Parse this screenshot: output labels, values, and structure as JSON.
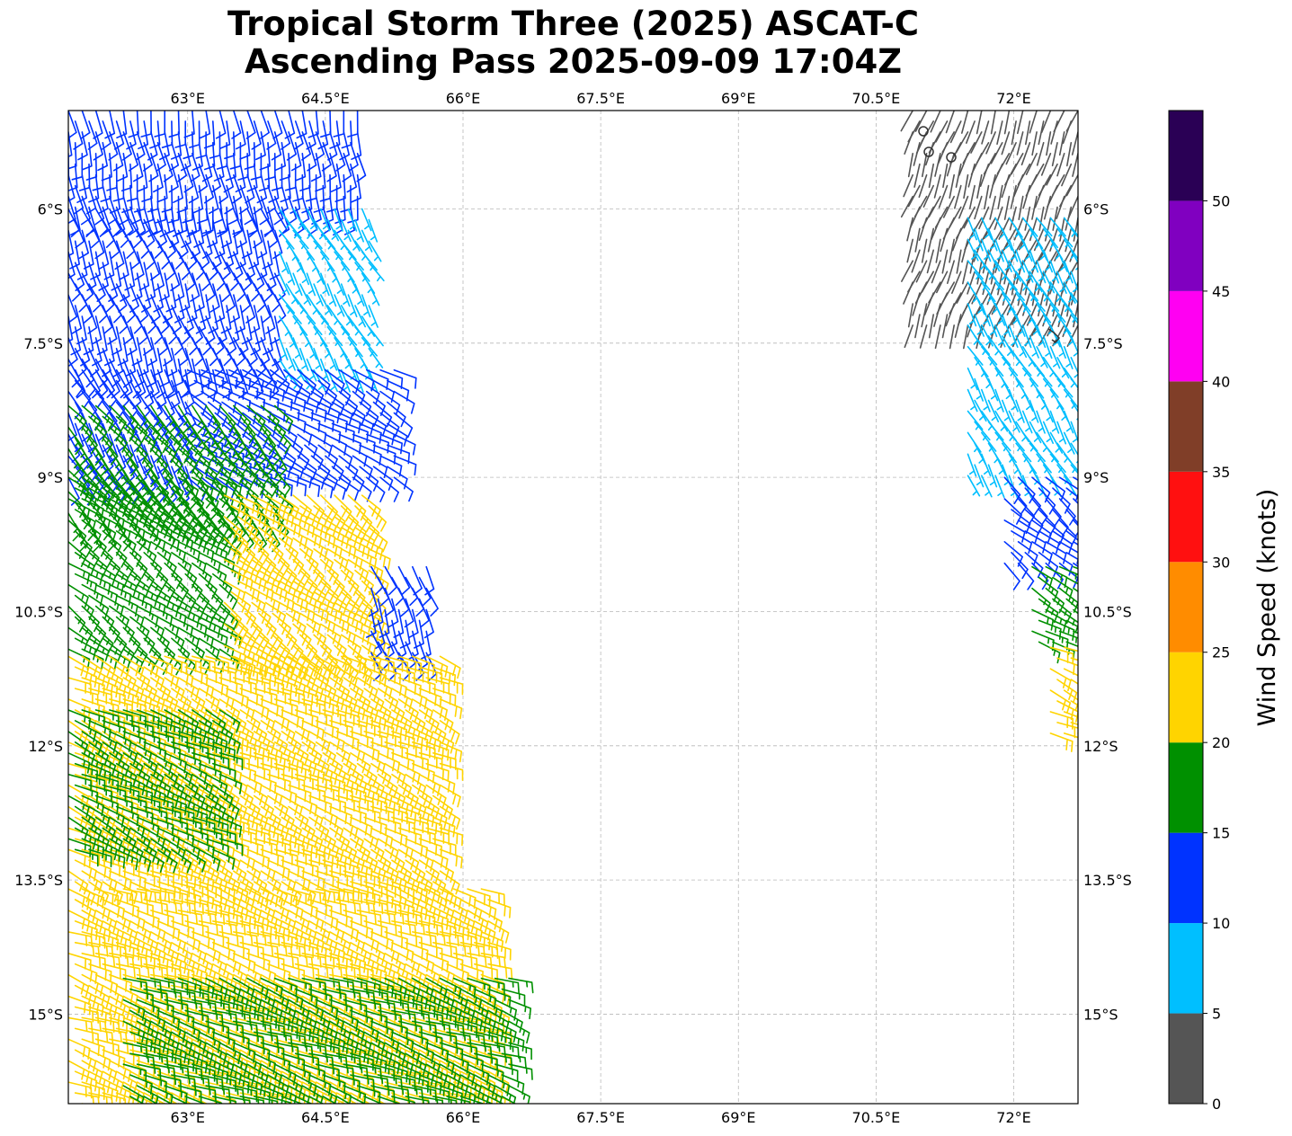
{
  "chart_data": {
    "type": "map-wind-barbs",
    "title_line1": "Tropical Storm Three (2025) ASCAT-C",
    "title_line2": "Ascending Pass 2025-09-09 17:04Z",
    "lon_range": [
      61.7,
      72.7
    ],
    "lat_range": [
      -16.0,
      -4.9
    ],
    "lon_ticks": [
      63.0,
      64.5,
      66.0,
      67.5,
      69.0,
      70.5,
      72.0
    ],
    "lon_tick_labels": [
      "63°E",
      "64.5°E",
      "66°E",
      "67.5°E",
      "69°E",
      "70.5°E",
      "72°E"
    ],
    "lat_ticks": [
      -6.0,
      -7.5,
      -9.0,
      -10.5,
      -12.0,
      -13.5,
      -15.0
    ],
    "lat_tick_labels": [
      "6°S",
      "7.5°S",
      "9°S",
      "10.5°S",
      "12°S",
      "13.5°S",
      "15°S"
    ],
    "grid": true,
    "colorbar": {
      "label": "Wind Speed (knots)",
      "range": [
        0,
        55
      ],
      "ticks": [
        0,
        5,
        10,
        15,
        20,
        25,
        30,
        35,
        40,
        45,
        50
      ],
      "tick_labels": [
        "0",
        "5",
        "10",
        "15",
        "20",
        "25",
        "30",
        "35",
        "40",
        "45",
        "50"
      ],
      "bins": [
        {
          "min": 0,
          "max": 5,
          "color": "#555555"
        },
        {
          "min": 5,
          "max": 10,
          "color": "#00bfff"
        },
        {
          "min": 10,
          "max": 15,
          "color": "#0033ff"
        },
        {
          "min": 15,
          "max": 20,
          "color": "#009000"
        },
        {
          "min": 20,
          "max": 25,
          "color": "#ffd400"
        },
        {
          "min": 25,
          "max": 30,
          "color": "#ff8c00"
        },
        {
          "min": 30,
          "max": 35,
          "color": "#ff1010"
        },
        {
          "min": 35,
          "max": 40,
          "color": "#803e28"
        },
        {
          "min": 40,
          "max": 45,
          "color": "#ff00f2"
        },
        {
          "min": 45,
          "max": 50,
          "color": "#8000c0"
        },
        {
          "min": 50,
          "max": 55,
          "color": "#2a0055"
        }
      ]
    },
    "swaths": [
      {
        "name": "west swath",
        "lat_step": 0.12,
        "lon_step": 0.15,
        "rows": [
          {
            "lat_max": -4.9,
            "lat_min": -6.0,
            "lon_min": 61.7,
            "lon_max": 64.9,
            "speed": 10,
            "dir": 170
          },
          {
            "lat_max": -6.0,
            "lat_min": -7.8,
            "lon_min": 61.7,
            "lon_max": 64.0,
            "speed": 12,
            "dir": 160
          },
          {
            "lat_max": -6.0,
            "lat_min": -7.8,
            "lon_min": 64.0,
            "lon_max": 65.0,
            "speed": 8,
            "dir": 150
          },
          {
            "lat_max": -7.8,
            "lat_min": -9.0,
            "lon_min": 61.7,
            "lon_max": 63.0,
            "speed": 12,
            "dir": 150
          },
          {
            "lat_max": -7.8,
            "lat_min": -9.0,
            "lon_min": 63.0,
            "lon_max": 65.3,
            "speed": 12,
            "dir": 120
          },
          {
            "lat_max": -8.2,
            "lat_min": -9.6,
            "lon_min": 61.7,
            "lon_max": 64.0,
            "speed": 17,
            "dir": 140
          },
          {
            "lat_max": -9.0,
            "lat_min": -11.0,
            "lon_min": 61.7,
            "lon_max": 63.4,
            "speed": 17,
            "dir": 125
          },
          {
            "lat_max": -9.2,
            "lat_min": -11.0,
            "lon_min": 63.4,
            "lon_max": 65.0,
            "speed": 22,
            "dir": 125
          },
          {
            "lat_max": -10.0,
            "lat_min": -11.0,
            "lon_min": 65.0,
            "lon_max": 65.6,
            "speed": 12,
            "dir": 160
          },
          {
            "lat_max": -11.0,
            "lat_min": -13.6,
            "lon_min": 61.7,
            "lon_max": 65.8,
            "speed": 22,
            "dir": 115
          },
          {
            "lat_max": -11.6,
            "lat_min": -13.2,
            "lon_min": 61.7,
            "lon_max": 63.4,
            "speed": 17,
            "dir": 115
          },
          {
            "lat_max": -13.6,
            "lat_min": -16.0,
            "lon_min": 61.7,
            "lon_max": 66.3,
            "speed": 22,
            "dir": 110
          },
          {
            "lat_max": -14.6,
            "lat_min": -16.0,
            "lon_min": 62.3,
            "lon_max": 66.5,
            "speed": 17,
            "dir": 110
          }
        ]
      },
      {
        "name": "east swath",
        "lat_step": 0.12,
        "lon_step": 0.15,
        "rows": [
          {
            "lat_max": -4.9,
            "lat_min": -7.3,
            "lon_min": 70.9,
            "lon_max": 72.7,
            "speed": 3,
            "dir": 200
          },
          {
            "lat_max": -6.1,
            "lat_min": -9.0,
            "lon_min": 71.5,
            "lon_max": 72.7,
            "speed": 7,
            "dir": 150
          },
          {
            "lat_max": -9.0,
            "lat_min": -10.0,
            "lon_min": 71.9,
            "lon_max": 72.7,
            "speed": 12,
            "dir": 130
          },
          {
            "lat_max": -10.0,
            "lat_min": -10.9,
            "lon_min": 72.2,
            "lon_max": 72.7,
            "speed": 17,
            "dir": 120
          },
          {
            "lat_max": -10.9,
            "lat_min": -11.9,
            "lon_min": 72.4,
            "lon_max": 72.7,
            "speed": 22,
            "dir": 115
          }
        ]
      }
    ]
  }
}
